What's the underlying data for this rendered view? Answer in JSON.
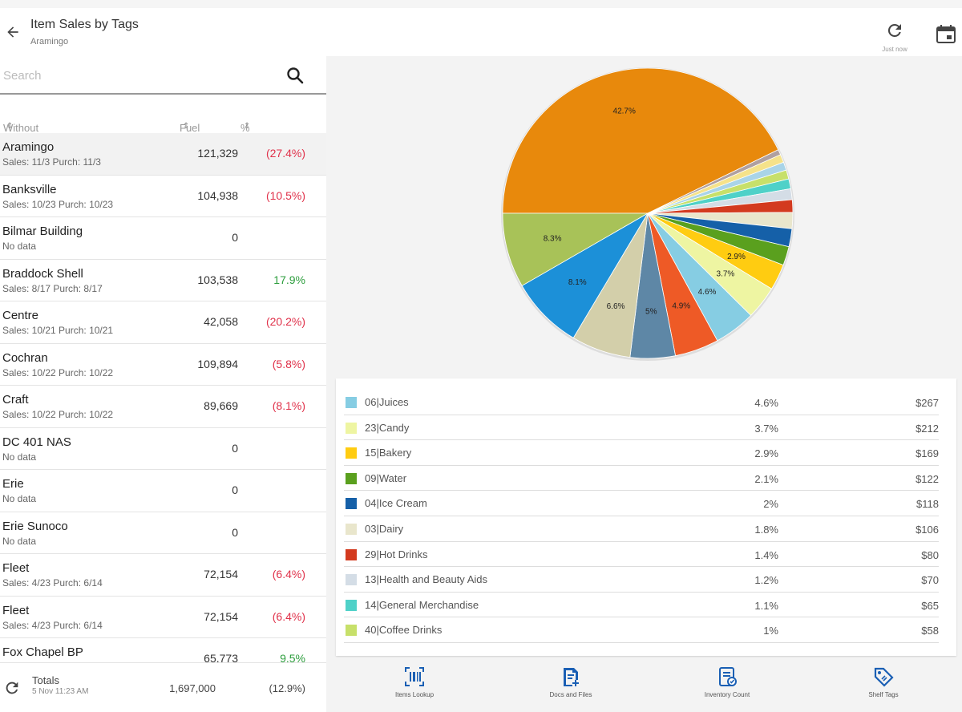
{
  "header": {
    "title": "Item Sales by Tags",
    "subtitle": "Aramingo",
    "refresh_label": "Just now"
  },
  "search": {
    "placeholder": "Search"
  },
  "columns": {
    "name": "Without Tags",
    "fuel": "Fuel",
    "change": "% Change"
  },
  "rows": [
    {
      "name": "Aramingo",
      "sub": "Sales: 11/3 Purch: 11/3",
      "fuel": "121,329",
      "change": "(27.4%)",
      "color": "#e0314a",
      "selected": true
    },
    {
      "name": "Banksville",
      "sub": "Sales: 10/23 Purch: 10/23",
      "fuel": "104,938",
      "change": "(10.5%)",
      "color": "#e0314a"
    },
    {
      "name": "Bilmar Building",
      "sub": "No data",
      "fuel": "0",
      "change": "",
      "color": "#333"
    },
    {
      "name": "Braddock Shell",
      "sub": "Sales: 8/17 Purch: 8/17",
      "fuel": "103,538",
      "change": "17.9%",
      "color": "#2e9e3e"
    },
    {
      "name": "Centre",
      "sub": "Sales: 10/21 Purch: 10/21",
      "fuel": "42,058",
      "change": "(20.2%)",
      "color": "#e0314a"
    },
    {
      "name": "Cochran",
      "sub": "Sales: 10/22 Purch: 10/22",
      "fuel": "109,894",
      "change": "(5.8%)",
      "color": "#e0314a"
    },
    {
      "name": "Craft",
      "sub": "Sales: 10/22 Purch: 10/22",
      "fuel": "89,669",
      "change": "(8.1%)",
      "color": "#e0314a"
    },
    {
      "name": "DC 401  NAS",
      "sub": "No data",
      "fuel": "0",
      "change": "",
      "color": "#333"
    },
    {
      "name": "Erie",
      "sub": "No data",
      "fuel": "0",
      "change": "",
      "color": "#333"
    },
    {
      "name": "Erie Sunoco",
      "sub": "No data",
      "fuel": "0",
      "change": "",
      "color": "#333"
    },
    {
      "name": "Fleet",
      "sub": "Sales: 4/23 Purch: 6/14",
      "fuel": "72,154",
      "change": "(6.4%)",
      "color": "#e0314a"
    },
    {
      "name": "Fleet",
      "sub": "Sales: 4/23 Purch: 6/14",
      "fuel": "72,154",
      "change": "(6.4%)",
      "color": "#e0314a"
    },
    {
      "name": "Fox Chapel BP",
      "sub": "",
      "fuel": "65,773",
      "change": "9.5%",
      "color": "#2e9e3e"
    }
  ],
  "totals": {
    "label": "Totals",
    "date": "5 Nov 11:23 AM",
    "fuel": "1,697,000",
    "change": "(12.9%)"
  },
  "chart_data": {
    "type": "pie",
    "slices": [
      {
        "value": 42.7,
        "label": "42.7%",
        "color": "#e8890c"
      },
      {
        "value": 0.6,
        "label": "",
        "color": "#b0a0a0"
      },
      {
        "value": 0.9,
        "label": "",
        "color": "#f5e28a"
      },
      {
        "value": 0.9,
        "label": "",
        "color": "#a9d4e8"
      },
      {
        "value": 1.0,
        "label": "",
        "color": "#c7e06a"
      },
      {
        "value": 1.1,
        "label": "",
        "color": "#4fd1c8"
      },
      {
        "value": 1.2,
        "label": "",
        "color": "#d4dde6"
      },
      {
        "value": 1.4,
        "label": "",
        "color": "#d33a1f"
      },
      {
        "value": 1.8,
        "label": "",
        "color": "#e9e6cc"
      },
      {
        "value": 2.0,
        "label": "",
        "color": "#1560a8"
      },
      {
        "value": 2.1,
        "label": "",
        "color": "#5aa01e"
      },
      {
        "value": 2.9,
        "label": "2.9%",
        "color": "#ffcc11"
      },
      {
        "value": 3.7,
        "label": "3.7%",
        "color": "#eef5a2"
      },
      {
        "value": 4.6,
        "label": "4.6%",
        "color": "#86cde3"
      },
      {
        "value": 4.9,
        "label": "4.9%",
        "color": "#ee5a26"
      },
      {
        "value": 5.0,
        "label": "5%",
        "color": "#5e87a6"
      },
      {
        "value": 6.6,
        "label": "6.6%",
        "color": "#d3cfaa"
      },
      {
        "value": 8.1,
        "label": "8.1%",
        "color": "#1c90d8"
      },
      {
        "value": 8.3,
        "label": "8.3%",
        "color": "#a8c258"
      }
    ]
  },
  "legend": [
    {
      "name": "06|Juices",
      "pct": "4.6%",
      "value": "$267",
      "color": "#86cde3"
    },
    {
      "name": "23|Candy",
      "pct": "3.7%",
      "value": "$212",
      "color": "#eef5a2"
    },
    {
      "name": "15|Bakery",
      "pct": "2.9%",
      "value": "$169",
      "color": "#ffcc11"
    },
    {
      "name": "09|Water",
      "pct": "2.1%",
      "value": "$122",
      "color": "#5aa01e"
    },
    {
      "name": "04|Ice Cream",
      "pct": "2%",
      "value": "$118",
      "color": "#1560a8"
    },
    {
      "name": "03|Dairy",
      "pct": "1.8%",
      "value": "$106",
      "color": "#e9e6cc"
    },
    {
      "name": "29|Hot Drinks",
      "pct": "1.4%",
      "value": "$80",
      "color": "#d33a1f"
    },
    {
      "name": "13|Health and Beauty Aids",
      "pct": "1.2%",
      "value": "$70",
      "color": "#d4dde6"
    },
    {
      "name": "14|General Merchandise",
      "pct": "1.1%",
      "value": "$65",
      "color": "#4fd1c8"
    },
    {
      "name": "40|Coffee Drinks",
      "pct": "1%",
      "value": "$58",
      "color": "#c7e06a"
    }
  ],
  "bottom_nav": [
    {
      "label": "Items Lookup",
      "icon": "barcode-icon"
    },
    {
      "label": "Docs and Files",
      "icon": "document-add-icon"
    },
    {
      "label": "Inventory Count",
      "icon": "inventory-icon"
    },
    {
      "label": "Shelf Tags",
      "icon": "tag-icon"
    }
  ]
}
